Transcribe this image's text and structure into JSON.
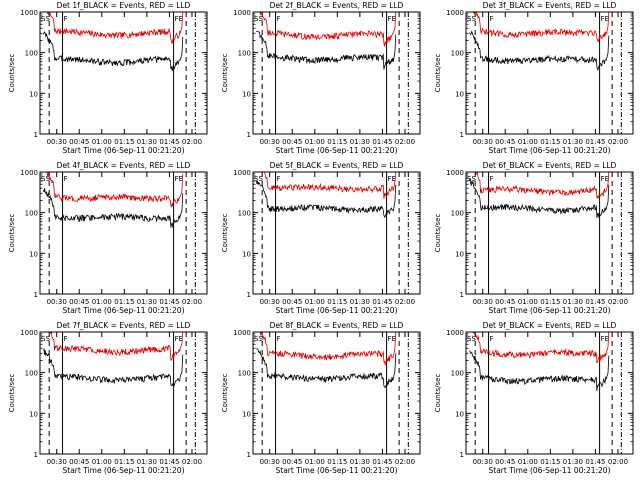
{
  "colors": {
    "events": "#000000",
    "lld": "#dd0000",
    "axis": "#000000",
    "background": "#ffffff"
  },
  "chart_data": [
    {
      "type": "line",
      "title": "Det 1f_BLACK = Events, RED = LLD",
      "xlabel": "Start Time (06-Sep-11 00:21:20)",
      "ylabel": "Counts/sec",
      "yscale": "log",
      "ylim": [
        1,
        1000
      ],
      "yticks": [
        1,
        10,
        100,
        1000
      ],
      "ytick_labels": [
        "1",
        "10",
        "100",
        "1000"
      ],
      "xticks": [
        "00:30",
        "00:45",
        "01:00",
        "01:15",
        "01:30",
        "01:45",
        "02:00"
      ],
      "markers": {
        "start": "SS",
        "flare_start": "F",
        "flare_end": "FE"
      },
      "events_level": 70,
      "lld_level": 330
    },
    {
      "type": "line",
      "title": "Det 2f_BLACK = Events, RED = LLD",
      "xlabel": "Start Time (06-Sep-11 00:21:20)",
      "ylabel": "Counts/sec",
      "yscale": "log",
      "ylim": [
        1,
        1000
      ],
      "yticks": [
        1,
        10,
        100,
        1000
      ],
      "ytick_labels": [
        "1",
        "10",
        "100",
        "1000"
      ],
      "xticks": [
        "00:30",
        "00:45",
        "01:00",
        "01:15",
        "01:30",
        "01:45",
        "02:00"
      ],
      "markers": {
        "start": "SS",
        "flare_start": "F",
        "flare_end": "FE"
      },
      "events_level": 80,
      "lld_level": 300
    },
    {
      "type": "line",
      "title": "Det 3f_BLACK = Events, RED = LLD",
      "xlabel": "Start Time (06-Sep-11 00:21:20)",
      "ylabel": "Counts/sec",
      "yscale": "log",
      "ylim": [
        1,
        1000
      ],
      "yticks": [
        1,
        10,
        100,
        1000
      ],
      "ytick_labels": [
        "1",
        "10",
        "100",
        "1000"
      ],
      "xticks": [
        "00:30",
        "00:45",
        "01:00",
        "01:15",
        "01:30",
        "01:45",
        "02:00"
      ],
      "markers": {
        "start": "SS",
        "flare_start": "F",
        "flare_end": "FE"
      },
      "events_level": 75,
      "lld_level": 340
    },
    {
      "type": "line",
      "title": "Det 4f_BLACK = Events, RED = LLD",
      "xlabel": "Start Time (06-Sep-11 00:21:20)",
      "ylabel": "Counts/sec",
      "yscale": "log",
      "ylim": [
        1,
        1000
      ],
      "yticks": [
        1,
        10,
        100,
        1000
      ],
      "ytick_labels": [
        "1",
        "10",
        "100",
        "1000"
      ],
      "xticks": [
        "00:30",
        "00:45",
        "01:00",
        "01:15",
        "01:30",
        "01:45",
        "02:00"
      ],
      "markers": {
        "start": "SS",
        "flare_start": "F",
        "flare_end": "FE"
      },
      "events_level": 85,
      "lld_level": 260
    },
    {
      "type": "line",
      "title": "Det 5f_BLACK = Events, RED = LLD",
      "xlabel": "Start Time (06-Sep-11 00:21:20)",
      "ylabel": "Counts/sec",
      "yscale": "log",
      "ylim": [
        1,
        1000
      ],
      "yticks": [
        1,
        10,
        100,
        1000
      ],
      "ytick_labels": [
        "1",
        "10",
        "100",
        "1000"
      ],
      "xticks": [
        "00:30",
        "00:45",
        "01:00",
        "01:15",
        "01:30",
        "01:45",
        "02:00"
      ],
      "markers": {
        "start": "SS",
        "flare_start": "F",
        "flare_end": "FE"
      },
      "events_level": 140,
      "lld_level": 450
    },
    {
      "type": "line",
      "title": "Det 6f_BLACK = Events, RED = LLD",
      "xlabel": "Start Time (06-Sep-11 00:21:20)",
      "ylabel": "Counts/sec",
      "yscale": "log",
      "ylim": [
        1,
        1000
      ],
      "yticks": [
        1,
        10,
        100,
        1000
      ],
      "ytick_labels": [
        "1",
        "10",
        "100",
        "1000"
      ],
      "xticks": [
        "00:30",
        "00:45",
        "01:00",
        "01:15",
        "01:30",
        "01:45",
        "02:00"
      ],
      "markers": {
        "start": "SS",
        "flare_start": "F",
        "flare_end": "FE"
      },
      "events_level": 140,
      "lld_level": 390
    },
    {
      "type": "line",
      "title": "Det 7f_BLACK = Events, RED = LLD",
      "xlabel": "Start Time (06-Sep-11 00:21:20)",
      "ylabel": "Counts/sec",
      "yscale": "log",
      "ylim": [
        1,
        1000
      ],
      "yticks": [
        1,
        10,
        100,
        1000
      ],
      "ytick_labels": [
        "1",
        "10",
        "100",
        "1000"
      ],
      "xticks": [
        "00:30",
        "00:45",
        "01:00",
        "01:15",
        "01:30",
        "01:45",
        "02:00"
      ],
      "markers": {
        "start": "SS",
        "flare_start": "F",
        "flare_end": "FE"
      },
      "events_level": 80,
      "lld_level": 400
    },
    {
      "type": "line",
      "title": "Det 8f_BLACK = Events, RED = LLD",
      "xlabel": "Start Time (06-Sep-11 00:21:20)",
      "ylabel": "Counts/sec",
      "yscale": "log",
      "ylim": [
        1,
        1000
      ],
      "yticks": [
        1,
        10,
        100,
        1000
      ],
      "ytick_labels": [
        "1",
        "10",
        "100",
        "1000"
      ],
      "xticks": [
        "00:30",
        "00:45",
        "01:00",
        "01:15",
        "01:30",
        "01:45",
        "02:00"
      ],
      "markers": {
        "start": "SS",
        "flare_start": "F",
        "flare_end": "FE"
      },
      "events_level": 85,
      "lld_level": 300
    },
    {
      "type": "line",
      "title": "Det 9f_BLACK = Events, RED = LLD",
      "xlabel": "Start Time (06-Sep-11 00:21:20)",
      "ylabel": "Counts/sec",
      "yscale": "log",
      "ylim": [
        1,
        1000
      ],
      "yticks": [
        1,
        10,
        100,
        1000
      ],
      "ytick_labels": [
        "1",
        "10",
        "100",
        "1000"
      ],
      "xticks": [
        "00:30",
        "00:45",
        "01:00",
        "01:15",
        "01:30",
        "01:45",
        "02:00"
      ],
      "markers": {
        "start": "SS",
        "flare_start": "F",
        "flare_end": "FE"
      },
      "events_level": 75,
      "lld_level": 330
    }
  ]
}
